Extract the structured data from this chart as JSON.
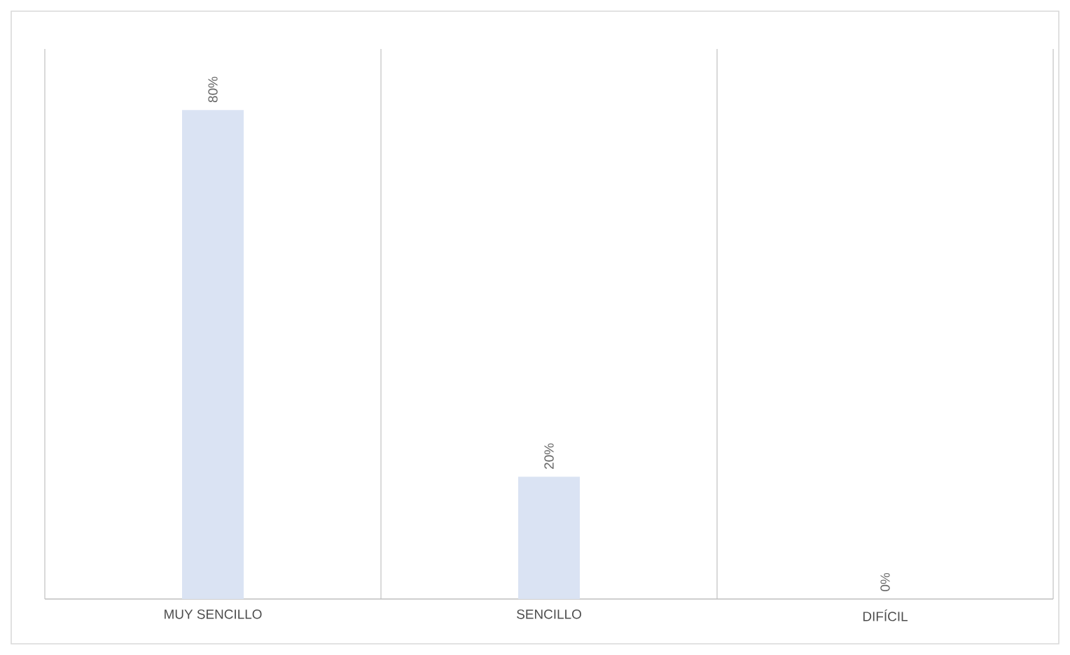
{
  "chart_data": {
    "type": "bar",
    "categories": [
      "MUY SENCILLO",
      "SENCILLO",
      "DIFÍCIL"
    ],
    "values": [
      80,
      20,
      0
    ],
    "value_labels": [
      "80%",
      "20%",
      "0%"
    ],
    "color": "#dae3f3",
    "grid": "x"
  }
}
